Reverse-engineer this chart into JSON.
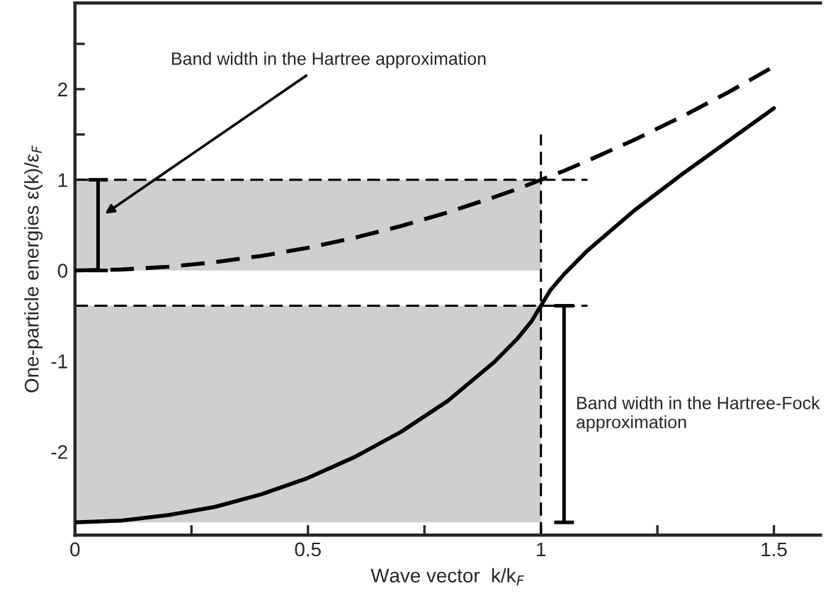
{
  "chart_data": {
    "type": "line",
    "xlabel": "Wave vector  k/k$_{F}$",
    "ylabel": "One-particle energies ε(k)/ε$_{F}$",
    "x": [
      0,
      0.1,
      0.2,
      0.3,
      0.4,
      0.5,
      0.6,
      0.7,
      0.8,
      0.9,
      0.95,
      0.98,
      1.0,
      1.02,
      1.05,
      1.1,
      1.2,
      1.3,
      1.4,
      1.5
    ],
    "series": [
      {
        "color": "#000000",
        "line_style": "dashed",
        "values": [
          0,
          0.01,
          0.04,
          0.09,
          0.16,
          0.25,
          0.36,
          0.49,
          0.64,
          0.81,
          0.9,
          0.96,
          1.0,
          1.04,
          1.1,
          1.21,
          1.44,
          1.69,
          1.96,
          2.25
        ]
      },
      {
        "color": "#000000",
        "line_style": "solid",
        "values": [
          -2.78,
          -2.76,
          -2.7,
          -2.61,
          -2.47,
          -2.29,
          -2.06,
          -1.78,
          -1.44,
          -1.01,
          -0.75,
          -0.56,
          -0.39,
          -0.22,
          -0.04,
          0.22,
          0.66,
          1.05,
          1.42,
          1.79
        ]
      }
    ],
    "xlim": [
      0,
      1.6
    ],
    "ylim": [
      -2.92,
      2.95
    ],
    "xticks": [
      0,
      {
        "value": 0.25,
        "label": null
      },
      0.5,
      {
        "value": 0.75,
        "label": null
      },
      1,
      {
        "value": 1.25,
        "label": null
      },
      1.5
    ],
    "yticks": [
      {
        "value": -2.5,
        "label": null
      },
      -2,
      {
        "value": -1.5,
        "label": null
      },
      -1,
      {
        "value": -0.5,
        "label": null
      },
      0,
      {
        "value": 0.5,
        "label": null
      },
      1,
      {
        "value": 1.5,
        "label": null
      },
      2,
      {
        "value": 2.5,
        "label": null
      }
    ],
    "ref_lines": [
      {
        "axis": "x",
        "value": 1,
        "line_style": "dashed",
        "color": "#000000"
      },
      {
        "axis": "y",
        "value": 1,
        "line_style": "dashed",
        "color": "#000000"
      },
      {
        "axis": "y",
        "value": -0.39,
        "line_style": "dashed",
        "color": "#000000"
      }
    ],
    "bands": [
      {
        "axis": "y",
        "from": 0,
        "to": 1,
        "color": "#cfcfcf"
      },
      {
        "axis": "y",
        "from": -2.78,
        "to": -0.39,
        "color": "#cfcfcf"
      }
    ],
    "annotations": [
      "Band width in the Hartree approximation",
      "Band width in the Hartree-Fock approximation"
    ],
    "grid": false,
    "legend": false
  }
}
